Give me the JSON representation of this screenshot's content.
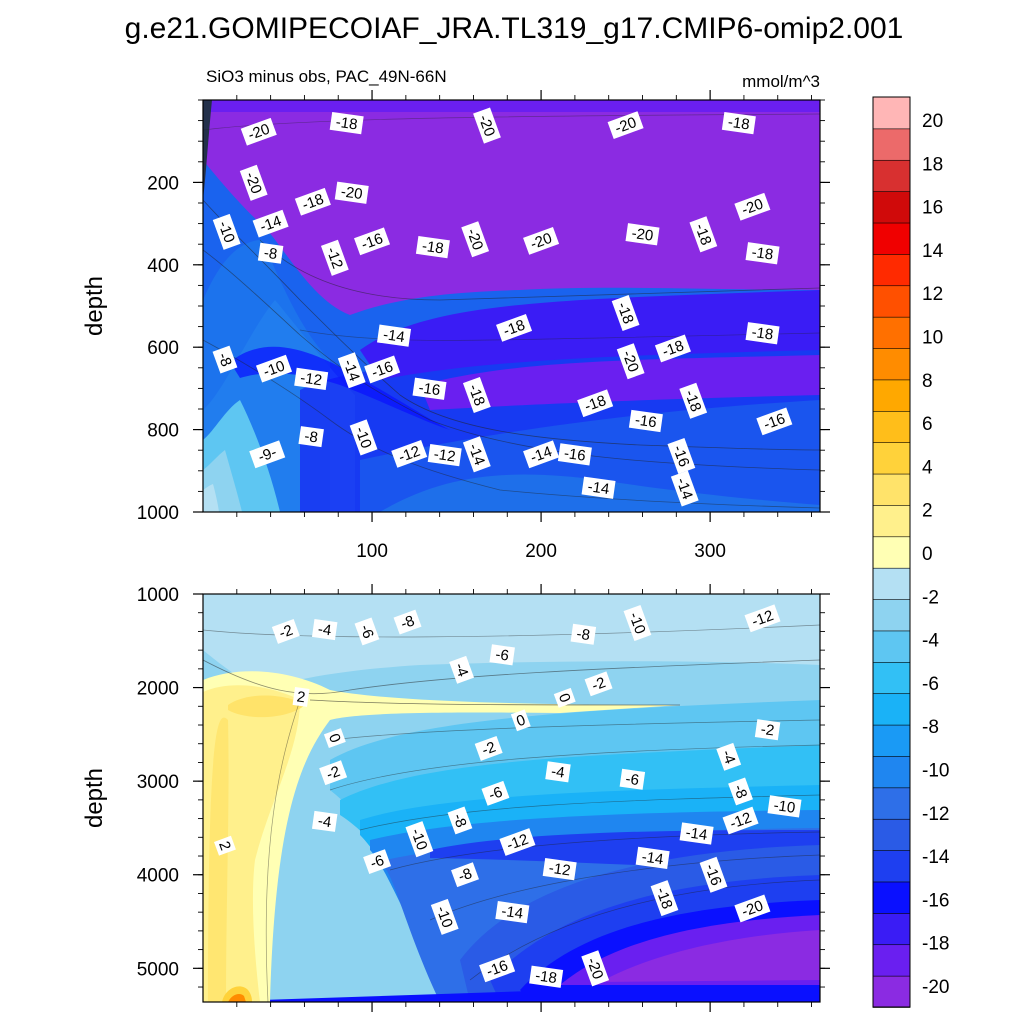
{
  "chart_data": {
    "type": "heatmap",
    "title": "g.e21.GOMIPECOIAF_JRA.TL319_g17.CMIP6-omip2.001",
    "subtitle": "SiO3 minus obs, PAC_49N-66N",
    "units": "mmol/m^3",
    "xlim": [
      0,
      365
    ],
    "x_ticks": [
      100,
      200,
      300
    ],
    "colorbar": {
      "levels": [
        -20,
        -18,
        -16,
        -14,
        -12,
        -10,
        -8,
        -6,
        -4,
        -2,
        0,
        2,
        4,
        6,
        8,
        10,
        12,
        14,
        16,
        18,
        20
      ],
      "tick_labels": [
        "-20",
        "-18",
        "-16",
        "-14",
        "-12",
        "-10",
        "-8",
        "-6",
        "-4",
        "-2",
        "0",
        "2",
        "4",
        "6",
        "8",
        "10",
        "12",
        "14",
        "16",
        "18",
        "20"
      ],
      "colors": [
        "#8B2BE2",
        "#6A1FF0",
        "#3A1CF5",
        "#0A10FF",
        "#1E3FF0",
        "#2A5BE6",
        "#2E6FE8",
        "#1F86F0",
        "#1A9AF5",
        "#1AB2F7",
        "#32C0F5",
        "#5EC6F2",
        "#8ED3F0",
        "#B4E0F3",
        "#FFFFB4",
        "#FFF08C",
        "#FFE36A",
        "#FFD23A",
        "#FFBE1A",
        "#FFA800",
        "#FF8C00",
        "#FF7000",
        "#FF5000",
        "#FF2A00",
        "#F00000",
        "#D00A0A",
        "#D83030",
        "#EC6A6A",
        "#FFB6B6"
      ]
    },
    "panels": [
      {
        "name": "upper",
        "ylabel": "depth",
        "ylim": [
          0,
          1000
        ],
        "y_ticks": [
          200,
          400,
          600,
          800,
          1000
        ],
        "contour_labels": [
          {
            "text": "-20",
            "x": 33,
            "y": 77
          },
          {
            "text": "-18",
            "x": 85,
            "y": 56
          },
          {
            "text": "-20",
            "x": 168,
            "y": 62
          },
          {
            "text": "-20",
            "x": 250,
            "y": 61
          },
          {
            "text": "-18",
            "x": 317,
            "y": 56
          },
          {
            "text": "-20",
            "x": 30,
            "y": 201
          },
          {
            "text": "-18",
            "x": 65,
            "y": 247
          },
          {
            "text": "-20",
            "x": 88,
            "y": 225
          },
          {
            "text": "-10",
            "x": 14,
            "y": 320
          },
          {
            "text": "-14",
            "x": 40,
            "y": 300
          },
          {
            "text": "-8",
            "x": 40,
            "y": 372
          },
          {
            "text": "-12",
            "x": 78,
            "y": 383
          },
          {
            "text": "-16",
            "x": 100,
            "y": 343
          },
          {
            "text": "-18",
            "x": 136,
            "y": 357
          },
          {
            "text": "-20",
            "x": 161,
            "y": 338
          },
          {
            "text": "-20",
            "x": 200,
            "y": 342
          },
          {
            "text": "-20",
            "x": 260,
            "y": 326
          },
          {
            "text": "-18",
            "x": 296,
            "y": 326
          },
          {
            "text": "-20",
            "x": 325,
            "y": 259
          },
          {
            "text": "-18",
            "x": 331,
            "y": 372
          },
          {
            "text": "-18",
            "x": 250,
            "y": 517
          },
          {
            "text": "-18",
            "x": 184,
            "y": 553
          },
          {
            "text": "-14",
            "x": 113,
            "y": 572
          },
          {
            "text": "-20",
            "x": 253,
            "y": 634
          },
          {
            "text": "-18",
            "x": 278,
            "y": 603
          },
          {
            "text": "-18",
            "x": 331,
            "y": 566
          },
          {
            "text": "-8",
            "x": 13,
            "y": 630
          },
          {
            "text": "-10",
            "x": 42,
            "y": 652
          },
          {
            "text": "-12",
            "x": 64,
            "y": 677
          },
          {
            "text": "-14",
            "x": 88,
            "y": 656
          },
          {
            "text": "-16",
            "x": 106,
            "y": 654
          },
          {
            "text": "-16",
            "x": 134,
            "y": 701
          },
          {
            "text": "-18",
            "x": 162,
            "y": 716
          },
          {
            "text": "-18",
            "x": 232,
            "y": 736
          },
          {
            "text": "-16",
            "x": 262,
            "y": 779
          },
          {
            "text": "-18",
            "x": 290,
            "y": 730
          },
          {
            "text": "-16",
            "x": 338,
            "y": 780
          },
          {
            "text": "-8",
            "x": 64,
            "y": 817
          },
          {
            "text": "-10",
            "x": 95,
            "y": 819
          },
          {
            "text": "-12",
            "x": 122,
            "y": 859
          },
          {
            "text": "-12",
            "x": 143,
            "y": 862
          },
          {
            "text": "-14",
            "x": 162,
            "y": 860
          },
          {
            "text": "-14",
            "x": 200,
            "y": 860
          },
          {
            "text": "-16",
            "x": 220,
            "y": 860
          },
          {
            "text": "-16",
            "x": 283,
            "y": 864
          },
          {
            "text": "-9-",
            "x": 38,
            "y": 860
          },
          {
            "text": "-14",
            "x": 234,
            "y": 941
          },
          {
            "text": "-14",
            "x": 285,
            "y": 943
          }
        ]
      },
      {
        "name": "lower",
        "ylabel": "depth",
        "ylim": [
          1000,
          5360
        ],
        "y_ticks": [
          1000,
          2000,
          3000,
          4000,
          5000
        ],
        "contour_labels": [
          {
            "text": "-2",
            "x": 49,
            "y": 1400
          },
          {
            "text": "-4",
            "x": 72,
            "y": 1380
          },
          {
            "text": "-6",
            "x": 97,
            "y": 1400
          },
          {
            "text": "-8",
            "x": 121,
            "y": 1300
          },
          {
            "text": "-8",
            "x": 225,
            "y": 1430
          },
          {
            "text": "-10",
            "x": 257,
            "y": 1310
          },
          {
            "text": "-12",
            "x": 331,
            "y": 1260
          },
          {
            "text": "-6",
            "x": 177,
            "y": 1650
          },
          {
            "text": "-4",
            "x": 153,
            "y": 1810
          },
          {
            "text": "-2",
            "x": 234,
            "y": 1960
          },
          {
            "text": "2",
            "x": 58,
            "y": 2100
          },
          {
            "text": "0",
            "x": 214,
            "y": 2110
          },
          {
            "text": "0",
            "x": 188,
            "y": 2350
          },
          {
            "text": "-2",
            "x": 334,
            "y": 2450
          },
          {
            "text": "0",
            "x": 78,
            "y": 2540
          },
          {
            "text": "-2",
            "x": 169,
            "y": 2650
          },
          {
            "text": "-4",
            "x": 210,
            "y": 2900
          },
          {
            "text": "-4",
            "x": 311,
            "y": 2740
          },
          {
            "text": "-2",
            "x": 77,
            "y": 2910
          },
          {
            "text": "-6",
            "x": 254,
            "y": 2980
          },
          {
            "text": "-8",
            "x": 318,
            "y": 3110
          },
          {
            "text": "-6",
            "x": 173,
            "y": 3130
          },
          {
            "text": "-10",
            "x": 344,
            "y": 3270
          },
          {
            "text": "-8",
            "x": 152,
            "y": 3420
          },
          {
            "text": "-12",
            "x": 318,
            "y": 3420
          },
          {
            "text": "-14",
            "x": 292,
            "y": 3560
          },
          {
            "text": "-10",
            "x": 128,
            "y": 3620
          },
          {
            "text": "-12",
            "x": 186,
            "y": 3650
          },
          {
            "text": "-4",
            "x": 72,
            "y": 3430
          },
          {
            "text": "2",
            "x": 13,
            "y": 3690
          },
          {
            "text": "-6",
            "x": 103,
            "y": 3860
          },
          {
            "text": "-14",
            "x": 266,
            "y": 3820
          },
          {
            "text": "-16",
            "x": 302,
            "y": 4000
          },
          {
            "text": "-8",
            "x": 155,
            "y": 4000
          },
          {
            "text": "-12",
            "x": 211,
            "y": 3940
          },
          {
            "text": "-18",
            "x": 273,
            "y": 4250
          },
          {
            "text": "-20",
            "x": 325,
            "y": 4360
          },
          {
            "text": "-14",
            "x": 183,
            "y": 4400
          },
          {
            "text": "-10",
            "x": 143,
            "y": 4450
          },
          {
            "text": "-16",
            "x": 174,
            "y": 5000
          },
          {
            "text": "-18",
            "x": 203,
            "y": 5090
          },
          {
            "text": "-20",
            "x": 232,
            "y": 5000
          }
        ]
      }
    ]
  }
}
